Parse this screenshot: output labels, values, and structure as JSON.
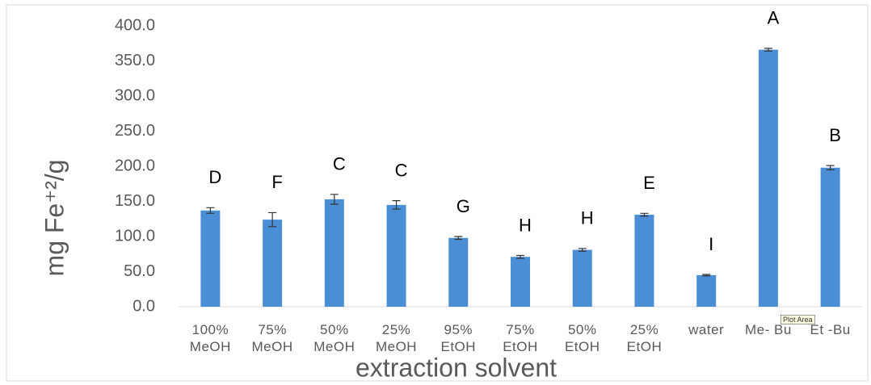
{
  "chart_data": {
    "type": "bar",
    "categories": [
      "100% MeOH",
      "75% MeOH",
      "50% MeOH",
      "25% MeOH",
      "95% EtOH",
      "75% EtOH",
      "50% EtOH",
      "25% EtOH",
      "water",
      "Me- Bu",
      "Et -Bu"
    ],
    "values": [
      137,
      124,
      153,
      145,
      98,
      71,
      81,
      131,
      45,
      366,
      198
    ],
    "errors": [
      4,
      10,
      7,
      6,
      2,
      2,
      2,
      2,
      1,
      2,
      3
    ],
    "annotations": [
      "D",
      "F",
      "C",
      "C",
      "G",
      "H",
      "H",
      "E",
      "I",
      "A",
      "B"
    ],
    "color": "#4a8fd6",
    "ylim": [
      0,
      400
    ],
    "yticks": [
      {
        "value": 0,
        "label": "0.0"
      },
      {
        "value": 50,
        "label": "50.0"
      },
      {
        "value": 100,
        "label": "100.0"
      },
      {
        "value": 150,
        "label": "150.0"
      },
      {
        "value": 200,
        "label": "200.0"
      },
      {
        "value": 250,
        "label": "250.0"
      },
      {
        "value": 300,
        "label": "300.0"
      },
      {
        "value": 350,
        "label": "350.0"
      },
      {
        "value": 400,
        "label": "400.0"
      }
    ],
    "xlabel": "extraction solvent",
    "ylabel": "mg Fe⁺²/g",
    "grid": false,
    "tooltip": "Plot Area"
  }
}
